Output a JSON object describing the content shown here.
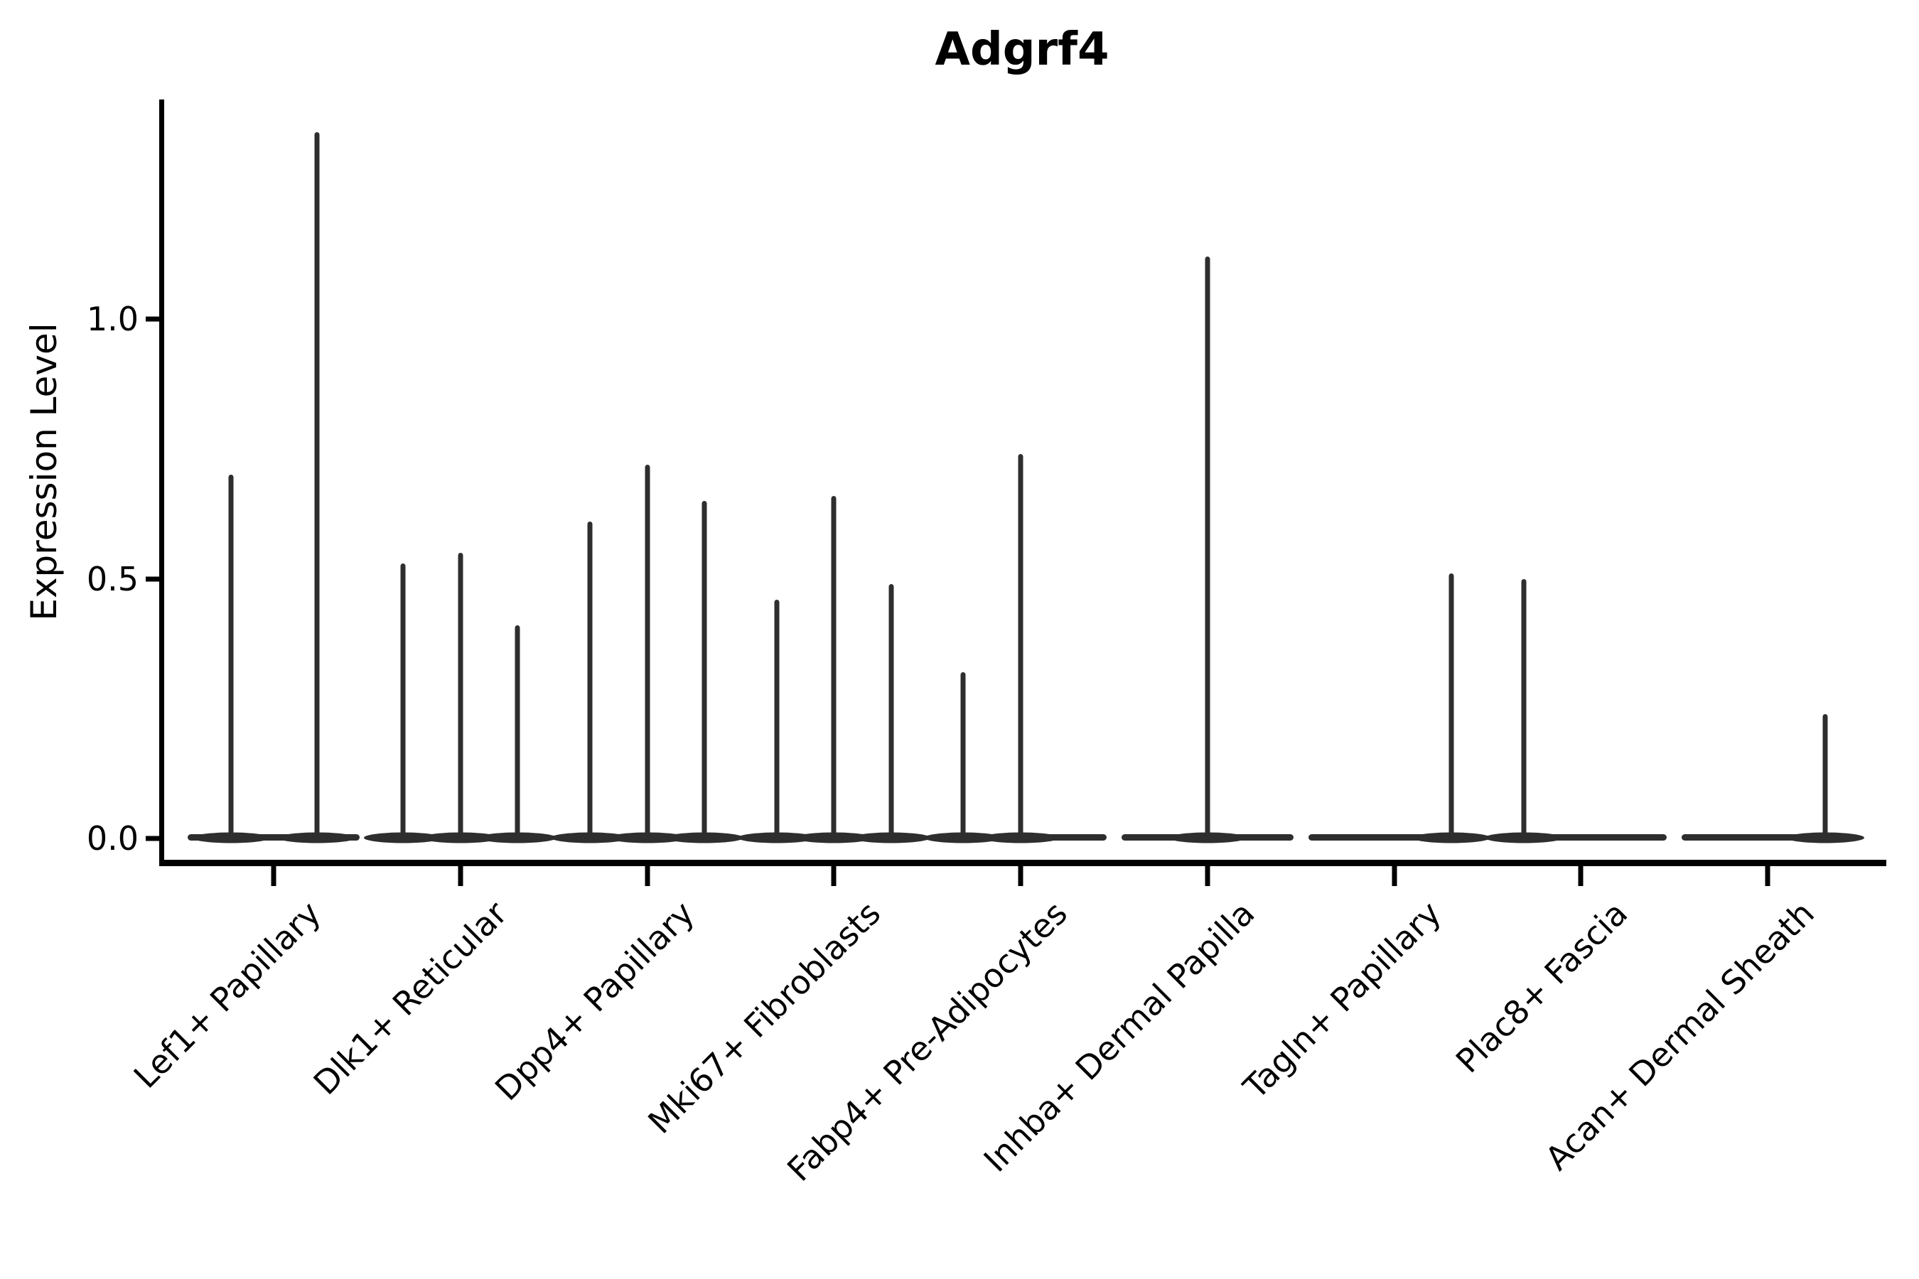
{
  "figure": {
    "title": "Adgrf4",
    "y_axis": {
      "label": "Expression Level",
      "ticks": [
        {
          "label": "1.0",
          "value": 1.0
        },
        {
          "label": "0.5",
          "value": 0.5
        },
        {
          "label": "0.0",
          "value": 0.0
        }
      ]
    },
    "colors": {
      "violin": "#2e2e2e",
      "axis": "#000000",
      "background": "#ffffff",
      "text": "#000000"
    }
  },
  "chart_data": {
    "type": "violin",
    "title": "Adgrf4",
    "xlabel": "",
    "ylabel": "Expression Level",
    "ylim": [
      0,
      1.42
    ],
    "yticks": [
      0.0,
      0.5,
      1.0
    ],
    "grid": false,
    "legend": false,
    "categories": [
      "Lef1+ Papillary",
      "Dlk1+ Reticular",
      "Dpp4+ Papillary",
      "Mki67+ Fibroblasts",
      "Fabp4+ Pre-Adipocytes",
      "Inhba+ Dermal Papilla",
      "Tagln+ Papillary",
      "Plac8+ Fascia",
      "Acan+ Dermal Sheath"
    ],
    "note": "Each category shows needle-thin violins: a wide flat density mass at expression 0 spanning the category width, with thin vertical spikes rising to the maximum observed expression. 'slot' is the spike's fractional x-position within the category band (0=left edge, 1=right edge).",
    "series": [
      {
        "category": "Lef1+ Papillary",
        "baseline": 0.0,
        "spikes": [
          {
            "slot": 0.25,
            "max": 0.7
          },
          {
            "slot": 0.75,
            "max": 1.36
          }
        ]
      },
      {
        "category": "Dlk1+ Reticular",
        "baseline": 0.0,
        "spikes": [
          {
            "slot": 0.167,
            "max": 0.53
          },
          {
            "slot": 0.5,
            "max": 0.55
          },
          {
            "slot": 0.833,
            "max": 0.41
          }
        ]
      },
      {
        "category": "Dpp4+ Papillary",
        "baseline": 0.0,
        "spikes": [
          {
            "slot": 0.167,
            "max": 0.61
          },
          {
            "slot": 0.5,
            "max": 0.72
          },
          {
            "slot": 0.833,
            "max": 0.65
          }
        ]
      },
      {
        "category": "Mki67+ Fibroblasts",
        "baseline": 0.0,
        "spikes": [
          {
            "slot": 0.167,
            "max": 0.46
          },
          {
            "slot": 0.5,
            "max": 0.66
          },
          {
            "slot": 0.833,
            "max": 0.49
          }
        ]
      },
      {
        "category": "Fabp4+ Pre-Adipocytes",
        "baseline": 0.0,
        "spikes": [
          {
            "slot": 0.167,
            "max": 0.32
          },
          {
            "slot": 0.5,
            "max": 0.74
          }
        ]
      },
      {
        "category": "Inhba+ Dermal Papilla",
        "baseline": 0.0,
        "spikes": [
          {
            "slot": 0.5,
            "max": 1.12
          }
        ]
      },
      {
        "category": "Tagln+ Papillary",
        "baseline": 0.0,
        "spikes": [
          {
            "slot": 0.833,
            "max": 0.51
          }
        ]
      },
      {
        "category": "Plac8+ Fascia",
        "baseline": 0.0,
        "spikes": [
          {
            "slot": 0.167,
            "max": 0.5
          }
        ]
      },
      {
        "category": "Acan+ Dermal Sheath",
        "baseline": 0.0,
        "spikes": [
          {
            "slot": 0.833,
            "max": 0.24
          }
        ]
      }
    ]
  }
}
